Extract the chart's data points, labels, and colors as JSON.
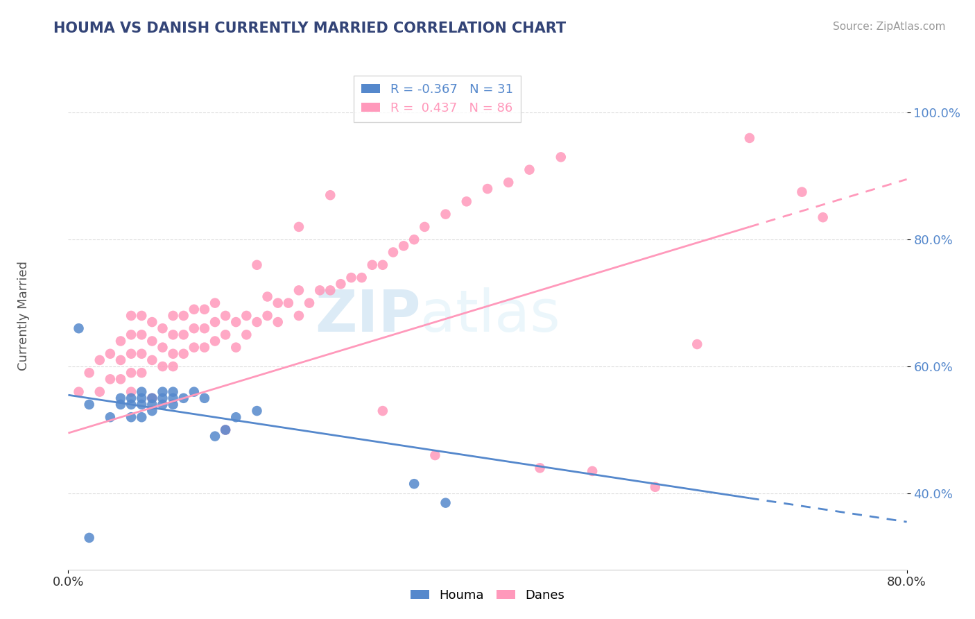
{
  "title": "HOUMA VS DANISH CURRENTLY MARRIED CORRELATION CHART",
  "source_text": "Source: ZipAtlas.com",
  "ylabel": "Currently Married",
  "xlim": [
    0.0,
    0.8
  ],
  "ylim": [
    0.28,
    1.08
  ],
  "houma_R": -0.367,
  "houma_N": 31,
  "danes_R": 0.437,
  "danes_N": 86,
  "houma_color": "#5588CC",
  "danes_color": "#FF99BB",
  "houma_scatter_x": [
    0.01,
    0.02,
    0.04,
    0.05,
    0.05,
    0.06,
    0.06,
    0.06,
    0.07,
    0.07,
    0.07,
    0.07,
    0.08,
    0.08,
    0.08,
    0.09,
    0.09,
    0.09,
    0.1,
    0.1,
    0.1,
    0.11,
    0.12,
    0.13,
    0.14,
    0.15,
    0.16,
    0.18,
    0.33,
    0.36,
    0.02
  ],
  "houma_scatter_y": [
    0.66,
    0.54,
    0.52,
    0.55,
    0.54,
    0.52,
    0.54,
    0.55,
    0.52,
    0.54,
    0.55,
    0.56,
    0.53,
    0.55,
    0.54,
    0.54,
    0.55,
    0.56,
    0.54,
    0.55,
    0.56,
    0.55,
    0.56,
    0.55,
    0.49,
    0.5,
    0.52,
    0.53,
    0.415,
    0.385,
    0.33
  ],
  "danes_scatter_x": [
    0.01,
    0.02,
    0.03,
    0.03,
    0.04,
    0.04,
    0.05,
    0.05,
    0.05,
    0.06,
    0.06,
    0.06,
    0.06,
    0.07,
    0.07,
    0.07,
    0.07,
    0.08,
    0.08,
    0.08,
    0.09,
    0.09,
    0.09,
    0.1,
    0.1,
    0.1,
    0.11,
    0.11,
    0.11,
    0.12,
    0.12,
    0.12,
    0.13,
    0.13,
    0.13,
    0.14,
    0.14,
    0.14,
    0.15,
    0.15,
    0.16,
    0.16,
    0.17,
    0.17,
    0.18,
    0.19,
    0.19,
    0.2,
    0.2,
    0.21,
    0.22,
    0.22,
    0.23,
    0.24,
    0.25,
    0.26,
    0.27,
    0.28,
    0.29,
    0.3,
    0.31,
    0.32,
    0.33,
    0.34,
    0.36,
    0.38,
    0.4,
    0.42,
    0.44,
    0.47,
    0.18,
    0.22,
    0.25,
    0.3,
    0.35,
    0.45,
    0.5,
    0.56,
    0.6,
    0.65,
    0.7,
    0.72,
    0.1,
    0.15,
    0.08,
    0.06
  ],
  "danes_scatter_y": [
    0.56,
    0.59,
    0.56,
    0.61,
    0.58,
    0.62,
    0.58,
    0.61,
    0.64,
    0.59,
    0.62,
    0.65,
    0.68,
    0.59,
    0.62,
    0.65,
    0.68,
    0.61,
    0.64,
    0.67,
    0.6,
    0.63,
    0.66,
    0.62,
    0.65,
    0.68,
    0.62,
    0.65,
    0.68,
    0.63,
    0.66,
    0.69,
    0.63,
    0.66,
    0.69,
    0.64,
    0.67,
    0.7,
    0.65,
    0.68,
    0.63,
    0.67,
    0.65,
    0.68,
    0.67,
    0.68,
    0.71,
    0.67,
    0.7,
    0.7,
    0.68,
    0.72,
    0.7,
    0.72,
    0.72,
    0.73,
    0.74,
    0.74,
    0.76,
    0.76,
    0.78,
    0.79,
    0.8,
    0.82,
    0.84,
    0.86,
    0.88,
    0.89,
    0.91,
    0.93,
    0.76,
    0.82,
    0.87,
    0.53,
    0.46,
    0.44,
    0.435,
    0.41,
    0.635,
    0.96,
    0.875,
    0.835,
    0.6,
    0.5,
    0.55,
    0.56
  ],
  "background_color": "#ffffff",
  "grid_color": "#dddddd",
  "ytick_color": "#5588CC",
  "xtick_color": "#333333"
}
